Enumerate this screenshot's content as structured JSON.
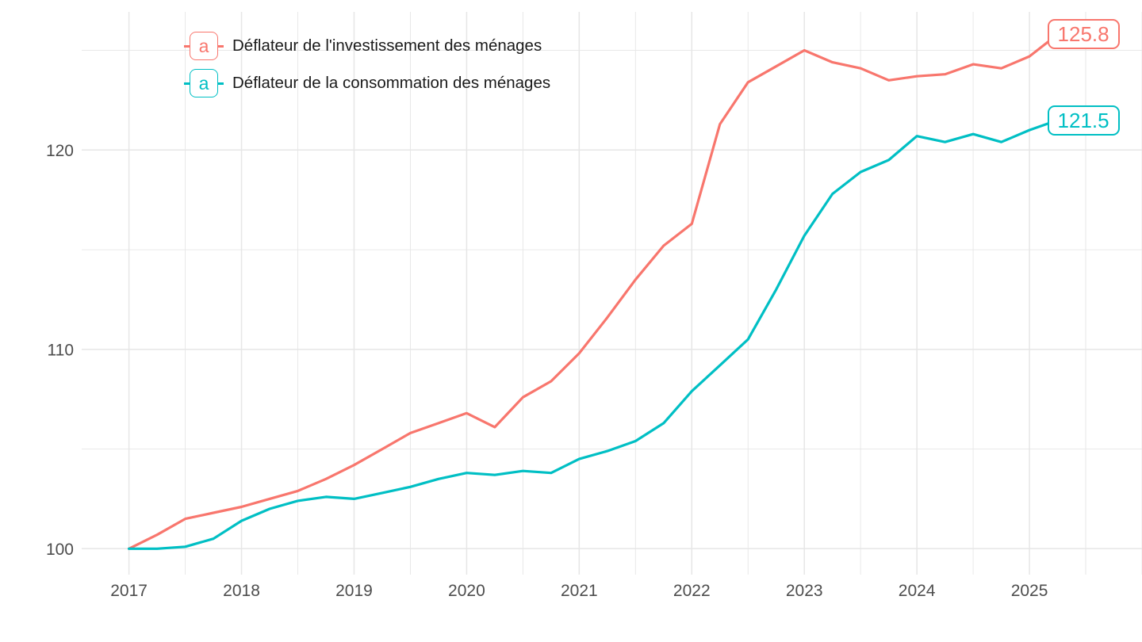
{
  "chart_data": {
    "type": "line",
    "title": "",
    "x_unit": "quarterly",
    "x_start": 2017,
    "x_step": 0.25,
    "x_ticks": [
      2017,
      2018,
      2019,
      2020,
      2021,
      2022,
      2023,
      2024,
      2025
    ],
    "x_minor_gridlines": [
      2017.5,
      2018.5,
      2019.5,
      2020.5,
      2021.5,
      2022.5,
      2023.5,
      2024.5,
      2025.5,
      2026
    ],
    "y_ticks": [
      100,
      110,
      120
    ],
    "y_minor_gridlines": [
      105,
      115,
      125
    ],
    "xlim": [
      2016.58,
      2026.0
    ],
    "ylim": [
      98.7,
      126.93
    ],
    "grid": true,
    "legend_position": "top-left-inside",
    "legend_key_glyph": "a",
    "background_color": "#FFFFFF",
    "gridline_color": "#E6E6E6",
    "axis_text_color": "#4D4D4D",
    "legend_text_color": "#1A1A1A",
    "series": [
      {
        "name": "Déflateur de l'investissement des ménages",
        "color": "#F8766D",
        "end_label": "125.8",
        "values": [
          100.0,
          100.7,
          101.5,
          101.8,
          102.1,
          102.5,
          102.9,
          103.5,
          104.2,
          105.0,
          105.8,
          106.3,
          106.8,
          106.1,
          107.6,
          108.4,
          109.8,
          111.6,
          113.5,
          115.2,
          116.3,
          121.3,
          123.4,
          124.2,
          125.0,
          124.4,
          124.1,
          123.5,
          123.7,
          123.8,
          124.3,
          124.1,
          124.7,
          125.8
        ]
      },
      {
        "name": "Déflateur de la consommation des ménages",
        "color": "#00BFC4",
        "end_label": "121.5",
        "values": [
          100.0,
          100.0,
          100.1,
          100.5,
          101.4,
          102.0,
          102.4,
          102.6,
          102.5,
          102.8,
          103.1,
          103.5,
          103.8,
          103.7,
          103.9,
          103.8,
          104.5,
          104.9,
          105.4,
          106.3,
          107.9,
          109.2,
          110.5,
          113.0,
          115.7,
          117.8,
          118.9,
          119.5,
          120.7,
          120.4,
          120.8,
          120.4,
          121.0,
          121.5
        ]
      }
    ]
  }
}
